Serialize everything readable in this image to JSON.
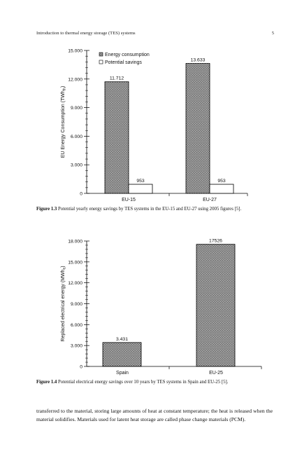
{
  "header": {
    "title": "Introduction to thermal energy storage (TES) systems",
    "page_number": "5"
  },
  "colors": {
    "bar_pattern": "#222222",
    "axis": "#000000"
  },
  "figure1": {
    "caption_label": "Figure 1.3",
    "caption_text": " Potential yearly energy savings by TES systems in the EU-15 and EU-27 using 2005 figures [5]."
  },
  "figure2": {
    "caption_label": "Figure 1.4",
    "caption_text": " Potential electrical energy savings over 10 years by TES systems in Spain and EU-25 [5]."
  },
  "body": {
    "paragraph": "transferred to the material, storing large amounts of heat at constant temperature; the heat is released when the material solidifies. Materials used for latent heat storage are called phase change materials (PCM)."
  },
  "chart_data": [
    {
      "type": "bar",
      "categories": [
        "EU-15",
        "EU-27"
      ],
      "series": [
        {
          "name": "Energy consumption",
          "values": [
            11712,
            13633
          ],
          "labels": [
            "11.712",
            "13.633"
          ],
          "pattern": "hatched"
        },
        {
          "name": "Potential savings",
          "values": [
            953,
            953
          ],
          "labels": [
            "953",
            "953"
          ],
          "pattern": "white"
        }
      ],
      "ylabel_main": "EU Energy Consumption (TWh",
      "ylabel_sub": "th",
      "ylabel_end": ")",
      "ylim": [
        0,
        15000
      ],
      "yticks": [
        0,
        3000,
        6000,
        9000,
        12000,
        15000
      ],
      "ytick_labels": [
        "0",
        "3.000",
        "6.000",
        "9.000",
        "12.000",
        "15.000"
      ],
      "legend_position": "top-left",
      "grid": false
    },
    {
      "type": "bar",
      "categories": [
        "Spain",
        "EU-25"
      ],
      "series": [
        {
          "values": [
            3431,
            17526
          ],
          "labels": [
            "3.431",
            "17526"
          ],
          "pattern": "hatched"
        }
      ],
      "ylabel_main": "Replaced electrical energy (MWh",
      "ylabel_sub": "e",
      "ylabel_end": ")",
      "ylim": [
        0,
        18000
      ],
      "yticks": [
        0,
        3000,
        6000,
        9000,
        12000,
        15000,
        18000
      ],
      "ytick_labels": [
        "0",
        "3.000",
        "6.000",
        "9.000",
        "12.000",
        "15.000",
        "18.000"
      ],
      "grid": false
    }
  ]
}
